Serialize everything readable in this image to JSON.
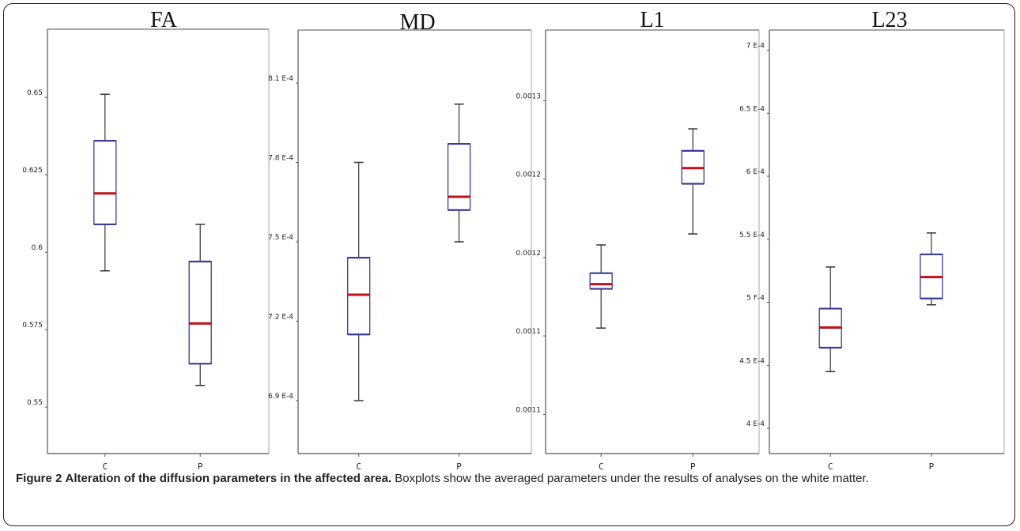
{
  "caption": {
    "label": "Figure 2",
    "title": "Alteration of the diffusion parameters in the affected area.",
    "text": "Boxplots show the averaged parameters under the results of analyses on the white matter."
  },
  "colors": {
    "box": "#3a3a9a",
    "median": "#c0101a",
    "whisker": "#333333",
    "axis": "#555555"
  },
  "chart_data": [
    {
      "type": "box",
      "title": "FA",
      "ylim": [
        0.535,
        0.672
      ],
      "ticks": [
        "0.55",
        "0.575",
        "0.6",
        "0.625",
        "0.65"
      ],
      "tick_values": [
        0.55,
        0.575,
        0.6,
        0.625,
        0.65
      ],
      "categories": [
        "C",
        "P"
      ],
      "boxes": [
        {
          "min": 0.594,
          "q1": 0.609,
          "median": 0.619,
          "q3": 0.636,
          "max": 0.651
        },
        {
          "min": 0.557,
          "q1": 0.564,
          "median": 0.577,
          "q3": 0.597,
          "max": 0.609
        }
      ]
    },
    {
      "type": "box",
      "title": "MD",
      "ylim": [
        0.00067,
        0.00083
      ],
      "ticks": [
        "6.9 E-4",
        "7.2 E-4",
        "7.5 E-4",
        "7.8 E-4",
        "8.1 E-4"
      ],
      "tick_values": [
        0.00069,
        0.00072,
        0.00075,
        0.00078,
        0.00081
      ],
      "categories": [
        "C",
        "P"
      ],
      "boxes": [
        {
          "min": 0.00069,
          "q1": 0.000715,
          "median": 0.00073,
          "q3": 0.000744,
          "max": 0.00078
        },
        {
          "min": 0.00075,
          "q1": 0.000762,
          "median": 0.000767,
          "q3": 0.000787,
          "max": 0.000802
        }
      ]
    },
    {
      "type": "box",
      "title": "L1",
      "ylim": [
        0.001075,
        0.001345
      ],
      "ticks": [
        "0.0011",
        "0.0011",
        "0.0012",
        "0.0012",
        "0.0013"
      ],
      "tick_values": [
        0.0011,
        0.00115,
        0.0012,
        0.00125,
        0.0013
      ],
      "categories": [
        "C",
        "P"
      ],
      "boxes": [
        {
          "min": 0.001155,
          "q1": 0.00118,
          "median": 0.001183,
          "q3": 0.00119,
          "max": 0.001208
        },
        {
          "min": 0.001215,
          "q1": 0.001247,
          "median": 0.001257,
          "q3": 0.001268,
          "max": 0.001282
        }
      ]
    },
    {
      "type": "box",
      "title": "L23",
      "ylim": [
        0.00038,
        0.000716
      ],
      "ticks": [
        "4 E-4",
        "4.5 E-4",
        "5 F-4",
        "5.5 E-4",
        "6 E-4",
        "6.5 E-4",
        "7 E-4"
      ],
      "tick_values": [
        0.0004,
        0.00045,
        0.0005,
        0.00055,
        0.0006,
        0.00065,
        0.0007
      ],
      "categories": [
        "C",
        "P"
      ],
      "boxes": [
        {
          "min": 0.000445,
          "q1": 0.000464,
          "median": 0.00048,
          "q3": 0.000495,
          "max": 0.000528
        },
        {
          "min": 0.000498,
          "q1": 0.000503,
          "median": 0.00052,
          "q3": 0.000538,
          "max": 0.000555
        }
      ]
    }
  ]
}
